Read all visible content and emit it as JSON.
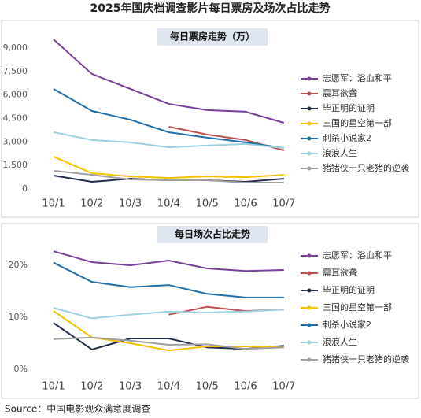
{
  "title": "2025年国庆档调查影片每日票房及场次占比走势",
  "source": "Source：中国电影观众满意度调查",
  "chart_data": [
    {
      "type": "line",
      "title": "每日票房走势（万）",
      "categories": [
        "10/1",
        "10/2",
        "10/3",
        "10/4",
        "10/5",
        "10/6",
        "10/7"
      ],
      "ylim": [
        0,
        10000
      ],
      "yticks": [
        0,
        {
          "value": 1500,
          "label": "1,500"
        },
        {
          "value": 3000,
          "label": "3,000"
        },
        {
          "value": 4500,
          "label": "4,500"
        },
        {
          "value": 6000,
          "label": "6,000"
        },
        {
          "value": 7500,
          "label": "7,500"
        },
        {
          "value": 9000,
          "label": "9,000"
        }
      ],
      "legend": "right",
      "series": [
        {
          "name": "志愿军：浴血和平",
          "color": "#7a3f9a",
          "values": [
            9550,
            7340,
            6385,
            5430,
            5030,
            4930,
            4220
          ]
        },
        {
          "name": "震耳欲聋",
          "color": "#c0504d",
          "values": [
            null,
            null,
            null,
            3970,
            3470,
            3120,
            2460
          ]
        },
        {
          "name": "毕正明的证明",
          "color": "#1f2d4a",
          "values": [
            855,
            450,
            650,
            550,
            550,
            450,
            650
          ]
        },
        {
          "name": "三国的星空第一部",
          "color": "#f2c200",
          "values": [
            2060,
            1000,
            800,
            700,
            800,
            750,
            900
          ]
        },
        {
          "name": "刺杀小说家2",
          "color": "#1f6fa8",
          "values": [
            6385,
            4980,
            4420,
            3620,
            3270,
            2970,
            2610
          ]
        },
        {
          "name": "浪浪人生",
          "color": "#9fd0e0",
          "values": [
            3620,
            3120,
            2970,
            2660,
            2770,
            2870,
            2610
          ]
        },
        {
          "name": "猪猪侠一只老猪的逆袭",
          "color": "#a0a0a0",
          "values": [
            1160,
            900,
            600,
            550,
            550,
            400,
            400
          ]
        }
      ]
    },
    {
      "type": "line",
      "title": "每日场次占比走势",
      "categories": [
        "10/1",
        "10/2",
        "10/3",
        "10/4",
        "10/5",
        "10/6",
        "10/7"
      ],
      "ylim": [
        0,
        25
      ],
      "yticks": [
        {
          "value": 0,
          "label": "0%"
        },
        {
          "value": 10,
          "label": "10%"
        },
        {
          "value": 20,
          "label": "20%"
        }
      ],
      "legend": "right",
      "series": [
        {
          "name": "志愿军：浴血和平",
          "color": "#7a3f9a",
          "values": [
            22.7,
            20.6,
            20.0,
            20.9,
            19.4,
            18.9,
            19.1
          ]
        },
        {
          "name": "震耳欲聋",
          "color": "#c0504d",
          "values": [
            null,
            null,
            null,
            10.5,
            12.0,
            11.2,
            11.5
          ]
        },
        {
          "name": "毕正明的证明",
          "color": "#1f2d4a",
          "values": [
            8.9,
            3.8,
            5.9,
            5.9,
            4.2,
            3.9,
            4.5
          ]
        },
        {
          "name": "三国的星空第一部",
          "color": "#f2c200",
          "values": [
            11.2,
            6.1,
            5.0,
            3.6,
            4.4,
            4.4,
            4.2
          ]
        },
        {
          "name": "刺杀小说家2",
          "color": "#1f6fa8",
          "values": [
            20.5,
            16.8,
            15.8,
            16.2,
            14.5,
            13.8,
            13.8
          ]
        },
        {
          "name": "浪浪人生",
          "color": "#9fd0e0",
          "values": [
            11.8,
            9.8,
            10.5,
            11.1,
            10.9,
            11.1,
            11.5
          ]
        },
        {
          "name": "猪猪侠一只老猪的逆袭",
          "color": "#a0a0a0",
          "values": [
            5.8,
            6.1,
            5.5,
            4.7,
            4.8,
            3.9,
            4.2
          ]
        }
      ]
    }
  ]
}
